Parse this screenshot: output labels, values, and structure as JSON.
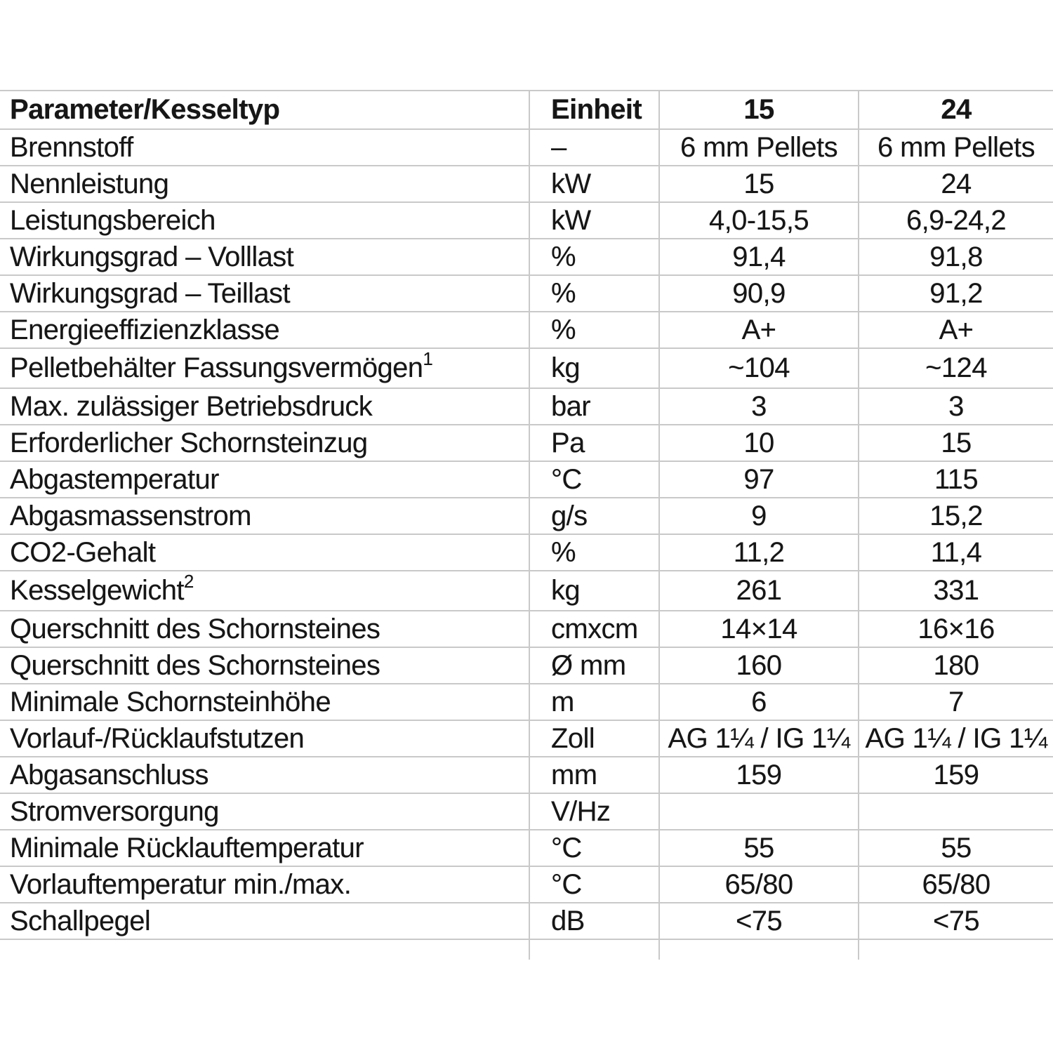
{
  "table": {
    "columns": [
      "Parameter/Kesseltyp",
      "Einheit",
      "15",
      "24"
    ],
    "rows": [
      {
        "param": "Brennstoff",
        "sup": "",
        "unit": "–",
        "v15": "6 mm Pellets",
        "v24": "6 mm Pellets"
      },
      {
        "param": "Nennleistung",
        "sup": "",
        "unit": "kW",
        "v15": "15",
        "v24": "24"
      },
      {
        "param": "Leistungsbereich",
        "sup": "",
        "unit": "kW",
        "v15": "4,0-15,5",
        "v24": "6,9-24,2"
      },
      {
        "param": "Wirkungsgrad – Volllast",
        "sup": "",
        "unit": "%",
        "v15": "91,4",
        "v24": "91,8"
      },
      {
        "param": "Wirkungsgrad – Teillast",
        "sup": "",
        "unit": "%",
        "v15": "90,9",
        "v24": "91,2"
      },
      {
        "param": "Energieeffizienzklasse",
        "sup": "",
        "unit": "%",
        "v15": "A+",
        "v24": "A+"
      },
      {
        "param": "Pelletbehälter Fassungsvermögen",
        "sup": "1",
        "unit": "kg",
        "v15": "~104",
        "v24": "~124"
      },
      {
        "param": "Max. zulässiger Betriebsdruck",
        "sup": "",
        "unit": "bar",
        "v15": "3",
        "v24": "3"
      },
      {
        "param": "Erforderlicher Schornsteinzug",
        "sup": "",
        "unit": "Pa",
        "v15": "10",
        "v24": "15"
      },
      {
        "param": "Abgastemperatur",
        "sup": "",
        "unit": "°C",
        "v15": "97",
        "v24": "115"
      },
      {
        "param": "Abgasmassenstrom",
        "sup": "",
        "unit": "g/s",
        "v15": "9",
        "v24": "15,2"
      },
      {
        "param": "CO2-Gehalt",
        "sup": "",
        "unit": "%",
        "v15": "11,2",
        "v24": "11,4"
      },
      {
        "param": "Kesselgewicht",
        "sup": "2",
        "unit": "kg",
        "v15": "261",
        "v24": "331"
      },
      {
        "param": "Querschnitt des Schornsteines",
        "sup": "",
        "unit": "cmxcm",
        "v15": "14×14",
        "v24": "16×16"
      },
      {
        "param": "Querschnitt des Schornsteines",
        "sup": "",
        "unit": "Ø mm",
        "v15": "160",
        "v24": "180"
      },
      {
        "param": "Minimale Schornsteinhöhe",
        "sup": "",
        "unit": "m",
        "v15": "6",
        "v24": "7"
      },
      {
        "param": "Vorlauf-/Rücklaufstutzen",
        "sup": "",
        "unit": "Zoll",
        "v15": "AG 1¼ / IG 1¼",
        "v24": "AG 1¼ / IG 1¼"
      },
      {
        "param": "Abgasanschluss",
        "sup": "",
        "unit": "mm",
        "v15": "159",
        "v24": "159"
      },
      {
        "param": "Stromversorgung",
        "sup": "",
        "unit": "V/Hz",
        "v15": "",
        "v24": ""
      },
      {
        "param": "Minimale Rücklauftemperatur",
        "sup": "",
        "unit": "°C",
        "v15": "55",
        "v24": "55"
      },
      {
        "param": "Vorlauftemperatur min./max.",
        "sup": "",
        "unit": "°C",
        "v15": "65/80",
        "v24": "65/80"
      },
      {
        "param": "Schallpegel",
        "sup": "",
        "unit": "dB",
        "v15": "<75",
        "v24": "<75"
      }
    ]
  }
}
